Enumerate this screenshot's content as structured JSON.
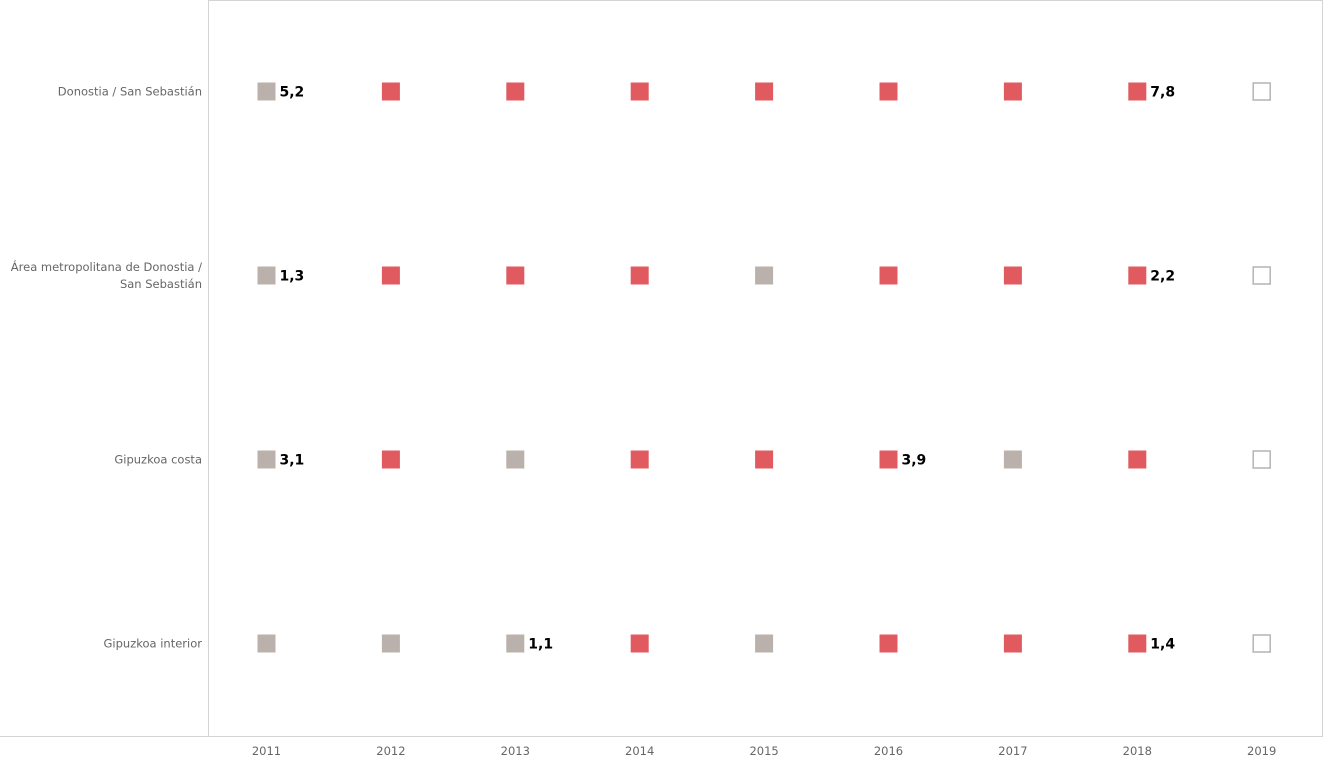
{
  "chart_data": {
    "type": "scatter",
    "marker": "square",
    "x": [
      "2011",
      "2012",
      "2013",
      "2014",
      "2015",
      "2016",
      "2017",
      "2018",
      "2019"
    ],
    "rows": [
      {
        "label_lines": [
          "Donostia / San Sebastián"
        ],
        "states": [
          "grey",
          "red",
          "red",
          "red",
          "red",
          "red",
          "red",
          "red",
          "empty"
        ],
        "labels": [
          "5,2",
          "",
          "",
          "",
          "",
          "",
          "",
          "7,8",
          ""
        ]
      },
      {
        "label_lines": [
          "Área metropolitana de Donostia /",
          "San Sebastián"
        ],
        "states": [
          "grey",
          "red",
          "red",
          "red",
          "grey",
          "red",
          "red",
          "red",
          "empty"
        ],
        "labels": [
          "1,3",
          "",
          "",
          "",
          "",
          "",
          "",
          "2,2",
          ""
        ]
      },
      {
        "label_lines": [
          "Gipuzkoa costa"
        ],
        "states": [
          "grey",
          "red",
          "grey",
          "red",
          "red",
          "red",
          "grey",
          "red",
          "empty"
        ],
        "labels": [
          "3,1",
          "",
          "",
          "",
          "",
          "3,9",
          "",
          "",
          ""
        ]
      },
      {
        "label_lines": [
          "Gipuzkoa interior"
        ],
        "states": [
          "grey",
          "grey",
          "grey",
          "red",
          "grey",
          "red",
          "red",
          "red",
          "empty"
        ],
        "labels": [
          "",
          "",
          "1,1",
          "",
          "",
          "",
          "",
          "1,4",
          ""
        ]
      }
    ],
    "colors": {
      "red": "#e05a5f",
      "grey": "#bab0ac",
      "empty_stroke": "#b4b4b4",
      "axis": "#d4d4d4",
      "text": "#666666"
    },
    "grid": false,
    "legend": "none"
  }
}
